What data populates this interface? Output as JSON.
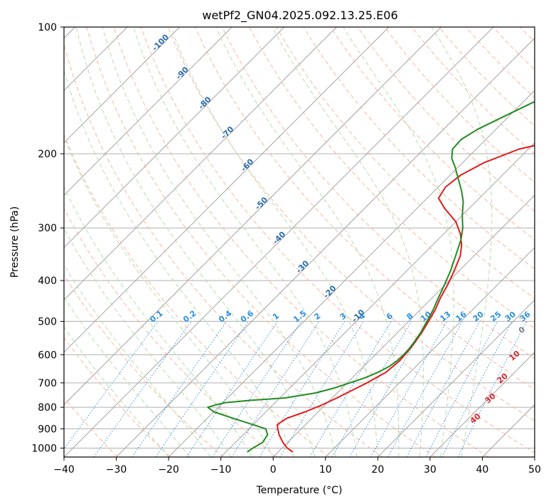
{
  "chart_data": {
    "type": "line",
    "diagram": "skew-T log-P",
    "title": "wetPf2_GN04.2025.092.13.25.E06",
    "xlabel": "Temperature (°C)",
    "ylabel": "Pressure (hPa)",
    "xlim": [
      -40,
      50
    ],
    "ylim": [
      1050,
      100
    ],
    "y_scale": "log",
    "x_ticks": [
      -40,
      -30,
      -20,
      -10,
      0,
      10,
      20,
      30,
      40,
      50
    ],
    "y_ticks": [
      100,
      200,
      300,
      400,
      500,
      600,
      700,
      800,
      900,
      1000
    ],
    "grid": true,
    "colors": {
      "temperature": "#e41a1c",
      "dewpoint": "#228B22",
      "isotherm": "#9a9a9a",
      "dry_adiabat": "#f7b7a0",
      "moist_adiabat": "#b6dcb0",
      "mixing_ratio": "#3a8fdc",
      "isotherm_label": "#2b6cb0",
      "mixing_ratio_label": "#2b8fe0",
      "theta_label": "#d62728"
    },
    "series": [
      {
        "name": "",
        "color": "#e41a1c",
        "p": [
          1022,
          1000,
          970,
          930,
          900,
          880,
          850,
          820,
          790,
          760,
          720,
          700,
          660,
          620,
          590,
          560,
          530,
          500,
          470,
          440,
          410,
          380,
          350,
          330,
          310,
          290,
          270,
          255,
          240,
          225,
          210,
          195,
          185,
          175,
          165,
          150,
          135,
          120,
          110,
          100
        ],
        "T": [
          2.8,
          1.0,
          -0.9,
          -3.1,
          -4.5,
          -5.4,
          -4.8,
          -2.5,
          -0.6,
          0.9,
          2.8,
          3.8,
          5.4,
          5.8,
          5.6,
          5.2,
          4.6,
          3.8,
          2.9,
          1.6,
          0.5,
          -0.9,
          -2.6,
          -4.4,
          -6.8,
          -10.0,
          -14.6,
          -17.8,
          -18.6,
          -18.0,
          -15.9,
          -11.8,
          -5.6,
          5.0,
          14.0,
          16.4,
          18.1,
          21.6,
          24.3,
          26.5
        ]
      },
      {
        "name": "",
        "color": "#228B22",
        "p": [
          1022,
          1000,
          970,
          930,
          900,
          880,
          850,
          820,
          800,
          790,
          780,
          770,
          760,
          740,
          720,
          700,
          680,
          660,
          640,
          620,
          600,
          580,
          560,
          530,
          500,
          470,
          440,
          410,
          380,
          350,
          320,
          300,
          280,
          260,
          245,
          230,
          215,
          205,
          195,
          185,
          175,
          160,
          145,
          130,
          115,
          105,
          100
        ],
        "Td": [
          -5.9,
          -5.6,
          -4.8,
          -5.3,
          -6.8,
          -10.0,
          -15.0,
          -20.0,
          -22.0,
          -21.0,
          -19.5,
          -15.0,
          -9.0,
          -4.2,
          -1.5,
          0.5,
          2.5,
          3.9,
          4.9,
          5.3,
          5.4,
          5.3,
          5.0,
          4.4,
          3.5,
          2.5,
          1.2,
          -0.1,
          -1.6,
          -3.5,
          -5.6,
          -7.5,
          -10.0,
          -12.4,
          -14.8,
          -17.6,
          -20.6,
          -22.9,
          -24.5,
          -24.7,
          -23.5,
          -20.2,
          -16.5,
          -13.0,
          -9.2,
          -6.2,
          -4.6
        ]
      }
    ],
    "isotherm_labels": [
      -100,
      -90,
      -80,
      -70,
      -60,
      -50,
      -40,
      -30,
      -20,
      -10
    ],
    "mixing_ratio_labels": [
      "0.1",
      "0.2",
      "0.4",
      "0.6",
      "1",
      "1.5",
      "2",
      "3",
      "4",
      "6",
      "8",
      "10",
      "13",
      "16",
      "20",
      "25",
      "30",
      "36"
    ],
    "theta_labels": [
      "0",
      "10",
      "20",
      "30",
      "40"
    ]
  }
}
